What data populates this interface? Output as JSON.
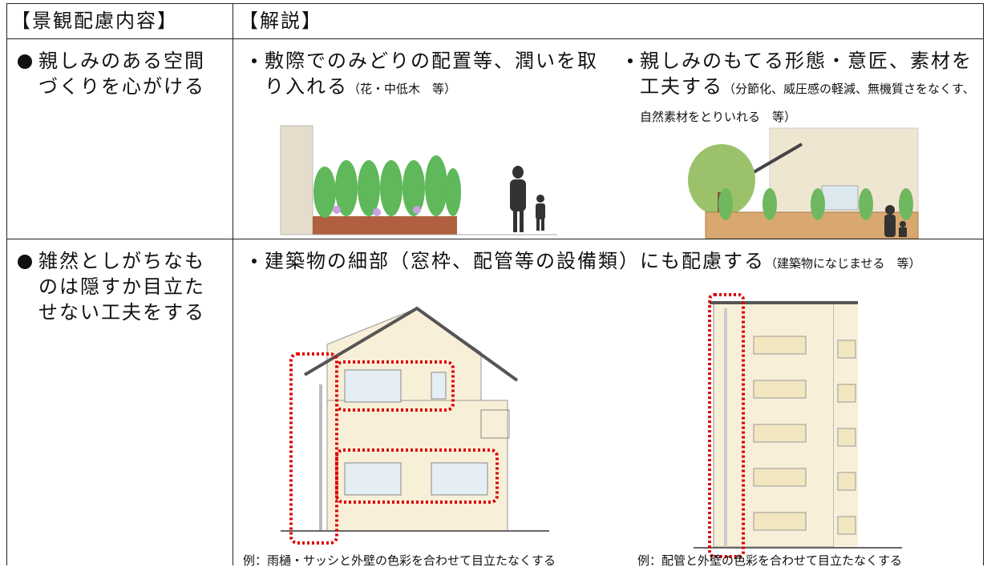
{
  "table": {
    "header": [
      "【景観配慮内容】",
      "【解説】"
    ],
    "rows": [
      {
        "item": "親しみのある空間づくりを心がける",
        "notes": [
          {
            "text": "敷際でのみどりの配置等、潤いを取り入れる",
            "detail": "（花・中低木　等）"
          },
          {
            "text": "親しみのもてる形態・意匠、素材を工夫する",
            "detail": "（分節化、威圧感の軽減、無機質さをなくす、自然素材をとりいれる　等）"
          }
        ]
      },
      {
        "item": "雑然としがちなものは隠すか目立たせない工夫をする",
        "notes": [
          {
            "text": "建築物の細部（窓枠、配管等の設備類）にも配慮する",
            "detail": "（建築物になじませる　等）"
          }
        ],
        "captions": [
          "例：雨樋・サッシと外壁の色彩を合わせて目立たなくする",
          "例：配管と外壁の色彩を合わせて目立たなくする"
        ]
      }
    ]
  }
}
